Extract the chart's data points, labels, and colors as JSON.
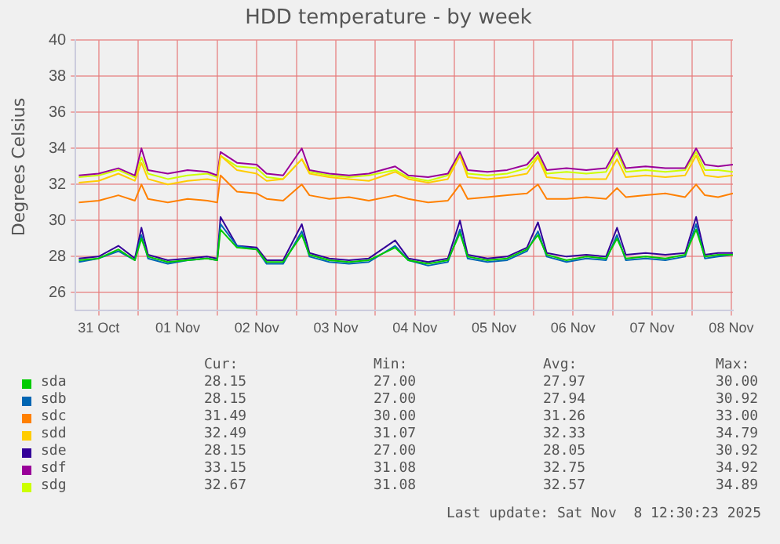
{
  "chart_data": {
    "type": "line",
    "title": "HDD temperature - by week",
    "ylabel": "Degrees Celsius",
    "xlim": [
      "2025-10-31T05:00",
      "2025-11-08T12:30"
    ],
    "xticks": [
      {
        "value": "2025-10-31T12:00",
        "label": "31 Oct"
      },
      {
        "value": "2025-11-01T00:00",
        "label": null
      },
      {
        "value": "2025-11-01T12:00",
        "label": "01 Nov"
      },
      {
        "value": "2025-11-02T00:00",
        "label": null
      },
      {
        "value": "2025-11-02T12:00",
        "label": "02 Nov"
      },
      {
        "value": "2025-11-03T00:00",
        "label": null
      },
      {
        "value": "2025-11-03T12:00",
        "label": "03 Nov"
      },
      {
        "value": "2025-11-04T00:00",
        "label": null
      },
      {
        "value": "2025-11-04T12:00",
        "label": "04 Nov"
      },
      {
        "value": "2025-11-05T00:00",
        "label": null
      },
      {
        "value": "2025-11-05T12:00",
        "label": "05 Nov"
      },
      {
        "value": "2025-11-06T00:00",
        "label": null
      },
      {
        "value": "2025-11-06T12:00",
        "label": "06 Nov"
      },
      {
        "value": "2025-11-07T00:00",
        "label": null
      },
      {
        "value": "2025-11-07T12:00",
        "label": "07 Nov"
      },
      {
        "value": "2025-11-08T00:00",
        "label": null
      },
      {
        "value": "2025-11-08T12:00",
        "label": "08 Nov"
      }
    ],
    "ylim": [
      25,
      40
    ],
    "yticks": [
      26,
      28,
      30,
      32,
      34,
      36,
      38,
      40
    ],
    "grid": true,
    "legend": "bottom",
    "marker": "none",
    "line_style": "solid",
    "x": [
      "2025-10-31T06:00",
      "2025-10-31T12:00",
      "2025-10-31T18:00",
      "2025-10-31T23:00",
      "2025-11-01T01:00",
      "2025-11-01T03:00",
      "2025-11-01T09:00",
      "2025-11-01T15:00",
      "2025-11-01T21:00",
      "2025-11-02T00:00",
      "2025-11-02T01:00",
      "2025-11-02T06:00",
      "2025-11-02T12:00",
      "2025-11-02T15:00",
      "2025-11-02T20:00",
      "2025-11-03T01:40",
      "2025-11-03T04:00",
      "2025-11-03T10:00",
      "2025-11-03T16:00",
      "2025-11-03T22:00",
      "2025-11-04T06:00",
      "2025-11-04T10:00",
      "2025-11-04T16:00",
      "2025-11-04T22:00",
      "2025-11-05T01:40",
      "2025-11-05T04:00",
      "2025-11-05T10:00",
      "2025-11-05T16:00",
      "2025-11-05T22:00",
      "2025-11-06T01:20",
      "2025-11-06T04:00",
      "2025-11-06T10:00",
      "2025-11-06T16:00",
      "2025-11-06T22:00",
      "2025-11-07T01:20",
      "2025-11-07T04:00",
      "2025-11-07T10:00",
      "2025-11-07T16:00",
      "2025-11-07T22:00",
      "2025-11-08T01:20",
      "2025-11-08T04:00",
      "2025-11-08T08:00",
      "2025-11-08T12:30"
    ],
    "series": [
      {
        "name": "sda",
        "color": "#00cc00",
        "values": [
          27.8,
          27.9,
          28.4,
          27.8,
          29.0,
          28.0,
          27.7,
          27.8,
          27.9,
          27.8,
          29.5,
          28.5,
          28.4,
          27.7,
          27.7,
          29.2,
          28.1,
          27.8,
          27.7,
          27.8,
          28.5,
          27.8,
          27.6,
          27.8,
          29.3,
          28.0,
          27.8,
          27.9,
          28.4,
          29.2,
          28.1,
          27.8,
          28.0,
          27.9,
          29.0,
          27.9,
          28.0,
          27.9,
          28.1,
          29.5,
          28.0,
          28.1,
          28.1
        ]
      },
      {
        "name": "sdb",
        "color": "#0066b3",
        "values": [
          27.7,
          27.9,
          28.3,
          27.8,
          29.2,
          27.9,
          27.6,
          27.8,
          27.9,
          27.8,
          29.8,
          28.6,
          28.4,
          27.6,
          27.6,
          29.4,
          28.0,
          27.7,
          27.6,
          27.7,
          28.6,
          27.8,
          27.5,
          27.7,
          29.5,
          27.9,
          27.7,
          27.8,
          28.3,
          29.4,
          28.0,
          27.7,
          27.9,
          27.8,
          29.2,
          27.8,
          27.9,
          27.8,
          28.0,
          29.8,
          27.9,
          28.0,
          28.1
        ]
      },
      {
        "name": "sdc",
        "color": "#ff8000",
        "values": [
          31.0,
          31.1,
          31.4,
          31.1,
          32.0,
          31.2,
          31.0,
          31.2,
          31.1,
          31.0,
          32.5,
          31.6,
          31.5,
          31.2,
          31.1,
          32.0,
          31.4,
          31.2,
          31.3,
          31.1,
          31.4,
          31.2,
          31.0,
          31.1,
          32.0,
          31.2,
          31.3,
          31.4,
          31.5,
          32.0,
          31.2,
          31.2,
          31.3,
          31.2,
          31.8,
          31.3,
          31.4,
          31.5,
          31.3,
          32.0,
          31.4,
          31.3,
          31.5
        ]
      },
      {
        "name": "sdd",
        "color": "#ffcc00",
        "values": [
          32.1,
          32.2,
          32.6,
          32.2,
          33.2,
          32.3,
          32.0,
          32.2,
          32.3,
          32.2,
          33.6,
          32.8,
          32.6,
          32.2,
          32.3,
          33.4,
          32.6,
          32.4,
          32.3,
          32.2,
          32.7,
          32.3,
          32.1,
          32.3,
          33.6,
          32.4,
          32.3,
          32.4,
          32.6,
          33.5,
          32.4,
          32.3,
          32.3,
          32.3,
          33.4,
          32.4,
          32.5,
          32.4,
          32.5,
          33.6,
          32.5,
          32.4,
          32.5
        ]
      },
      {
        "name": "sde",
        "color": "#330099",
        "values": [
          27.9,
          28.0,
          28.6,
          27.9,
          29.6,
          28.1,
          27.8,
          27.9,
          28.0,
          27.9,
          30.2,
          28.6,
          28.5,
          27.8,
          27.8,
          29.8,
          28.2,
          27.9,
          27.8,
          27.9,
          28.9,
          27.9,
          27.7,
          27.9,
          30.0,
          28.1,
          27.9,
          28.0,
          28.5,
          29.9,
          28.2,
          28.0,
          28.1,
          28.0,
          29.6,
          28.1,
          28.2,
          28.1,
          28.2,
          30.2,
          28.1,
          28.2,
          28.2
        ]
      },
      {
        "name": "sdf",
        "color": "#990099",
        "values": [
          32.5,
          32.6,
          32.9,
          32.5,
          34.0,
          32.8,
          32.6,
          32.8,
          32.7,
          32.5,
          33.8,
          33.2,
          33.1,
          32.6,
          32.5,
          34.0,
          32.8,
          32.6,
          32.5,
          32.6,
          33.0,
          32.5,
          32.4,
          32.6,
          33.8,
          32.8,
          32.7,
          32.8,
          33.1,
          33.8,
          32.8,
          32.9,
          32.8,
          32.9,
          34.0,
          32.9,
          33.0,
          32.9,
          32.9,
          34.0,
          33.1,
          33.0,
          33.1
        ]
      },
      {
        "name": "sdg",
        "color": "#ccff00",
        "values": [
          32.4,
          32.5,
          32.8,
          32.4,
          33.5,
          32.6,
          32.3,
          32.5,
          32.6,
          32.4,
          33.6,
          33.0,
          32.9,
          32.4,
          32.3,
          33.4,
          32.7,
          32.5,
          32.4,
          32.5,
          32.8,
          32.4,
          32.2,
          32.5,
          33.6,
          32.6,
          32.5,
          32.6,
          32.9,
          33.6,
          32.6,
          32.7,
          32.6,
          32.7,
          33.8,
          32.7,
          32.8,
          32.7,
          32.8,
          33.8,
          32.8,
          32.8,
          32.7
        ]
      }
    ],
    "annotations": [
      "Cur:",
      "Min:",
      "Avg:",
      "Max:",
      "28.15",
      "27.00",
      "27.97",
      "30.00",
      "28.15",
      "27.00",
      "27.94",
      "30.92",
      "31.49",
      "30.00",
      "31.26",
      "33.00",
      "32.49",
      "31.07",
      "32.33",
      "34.79",
      "28.15",
      "27.00",
      "28.05",
      "30.92",
      "33.15",
      "31.08",
      "32.75",
      "34.92",
      "32.67",
      "31.08",
      "32.57",
      "34.89",
      "Last update: Sat Nov  8 12:30:23 2025"
    ]
  }
}
